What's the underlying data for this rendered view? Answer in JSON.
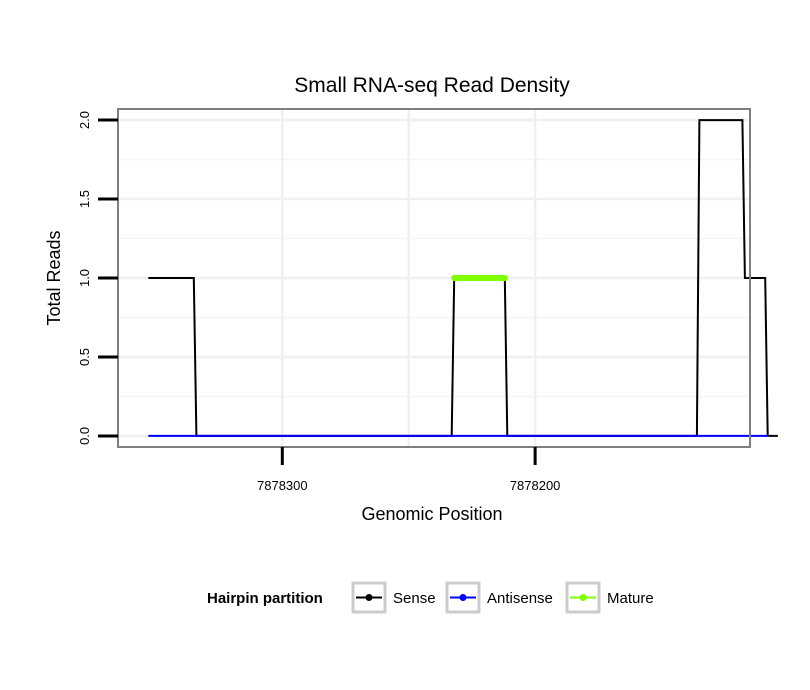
{
  "chart_data": {
    "type": "line",
    "title": "Small RNA-seq Read Density",
    "xlabel": "Genomic Position",
    "ylabel": "Total Reads",
    "x_reversed": true,
    "xlim": [
      7878365,
      7878115
    ],
    "ylim": [
      -0.07,
      2.07
    ],
    "x_ticks": [
      7878300,
      7878200
    ],
    "x_tick_labels": [
      "7878300",
      "7878200"
    ],
    "y_ticks": [
      0,
      0.5,
      1,
      1.5,
      2
    ],
    "y_tick_labels": [
      "0.0",
      "0.5",
      "1.0",
      "1.5",
      "2.0"
    ],
    "grid": true,
    "series": [
      {
        "name": "Sense",
        "color": "#000000",
        "x": [
          7878353,
          7878335,
          7878334,
          7878233,
          7878232,
          7878212,
          7878211,
          7878136,
          7878135,
          7878118,
          7878117,
          7878109,
          7878108,
          7878104
        ],
        "y": [
          1,
          1,
          0,
          0,
          1,
          1,
          0,
          0,
          2,
          2,
          1,
          1,
          0,
          0
        ]
      },
      {
        "name": "Antisense",
        "color": "#0000ff",
        "x": [
          7878353,
          7878108
        ],
        "y": [
          0,
          0
        ]
      },
      {
        "name": "Mature",
        "color": "#80ff00",
        "x": [
          7878232,
          7878212
        ],
        "y": [
          1,
          1
        ]
      }
    ],
    "legend": {
      "title": "Hairpin partition",
      "position": "bottom",
      "entries": [
        "Sense",
        "Antisense",
        "Mature"
      ]
    }
  }
}
